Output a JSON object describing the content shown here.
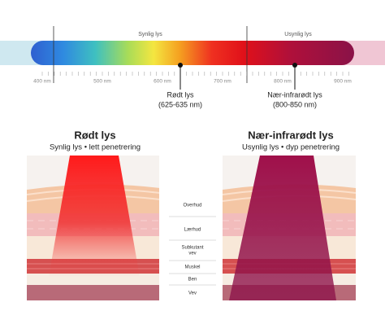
{
  "spectrum": {
    "regions": [
      "Synlig lys",
      "Usynlig lys"
    ],
    "ticks": [
      "400 nm",
      "500 nm",
      "600 nm",
      "700 nm",
      "800 nm",
      "900 nm"
    ],
    "markers": [
      {
        "title": "Rødt lys",
        "range": "(625-635 nm)"
      },
      {
        "title": "Nær-infrarødt lys",
        "range": "(800-850 nm)"
      }
    ]
  },
  "panels": [
    {
      "title": "Rødt lys",
      "subtitle": "Synlig lys • lett penetrering"
    },
    {
      "title": "Nær-infrarødt lys",
      "subtitle": "Usynlig lys • dyp penetrering"
    }
  ],
  "layers": [
    "Overhud",
    "Lærhud",
    "Subkutant",
    "vev",
    "Muskel",
    "Ben",
    "Vev"
  ]
}
